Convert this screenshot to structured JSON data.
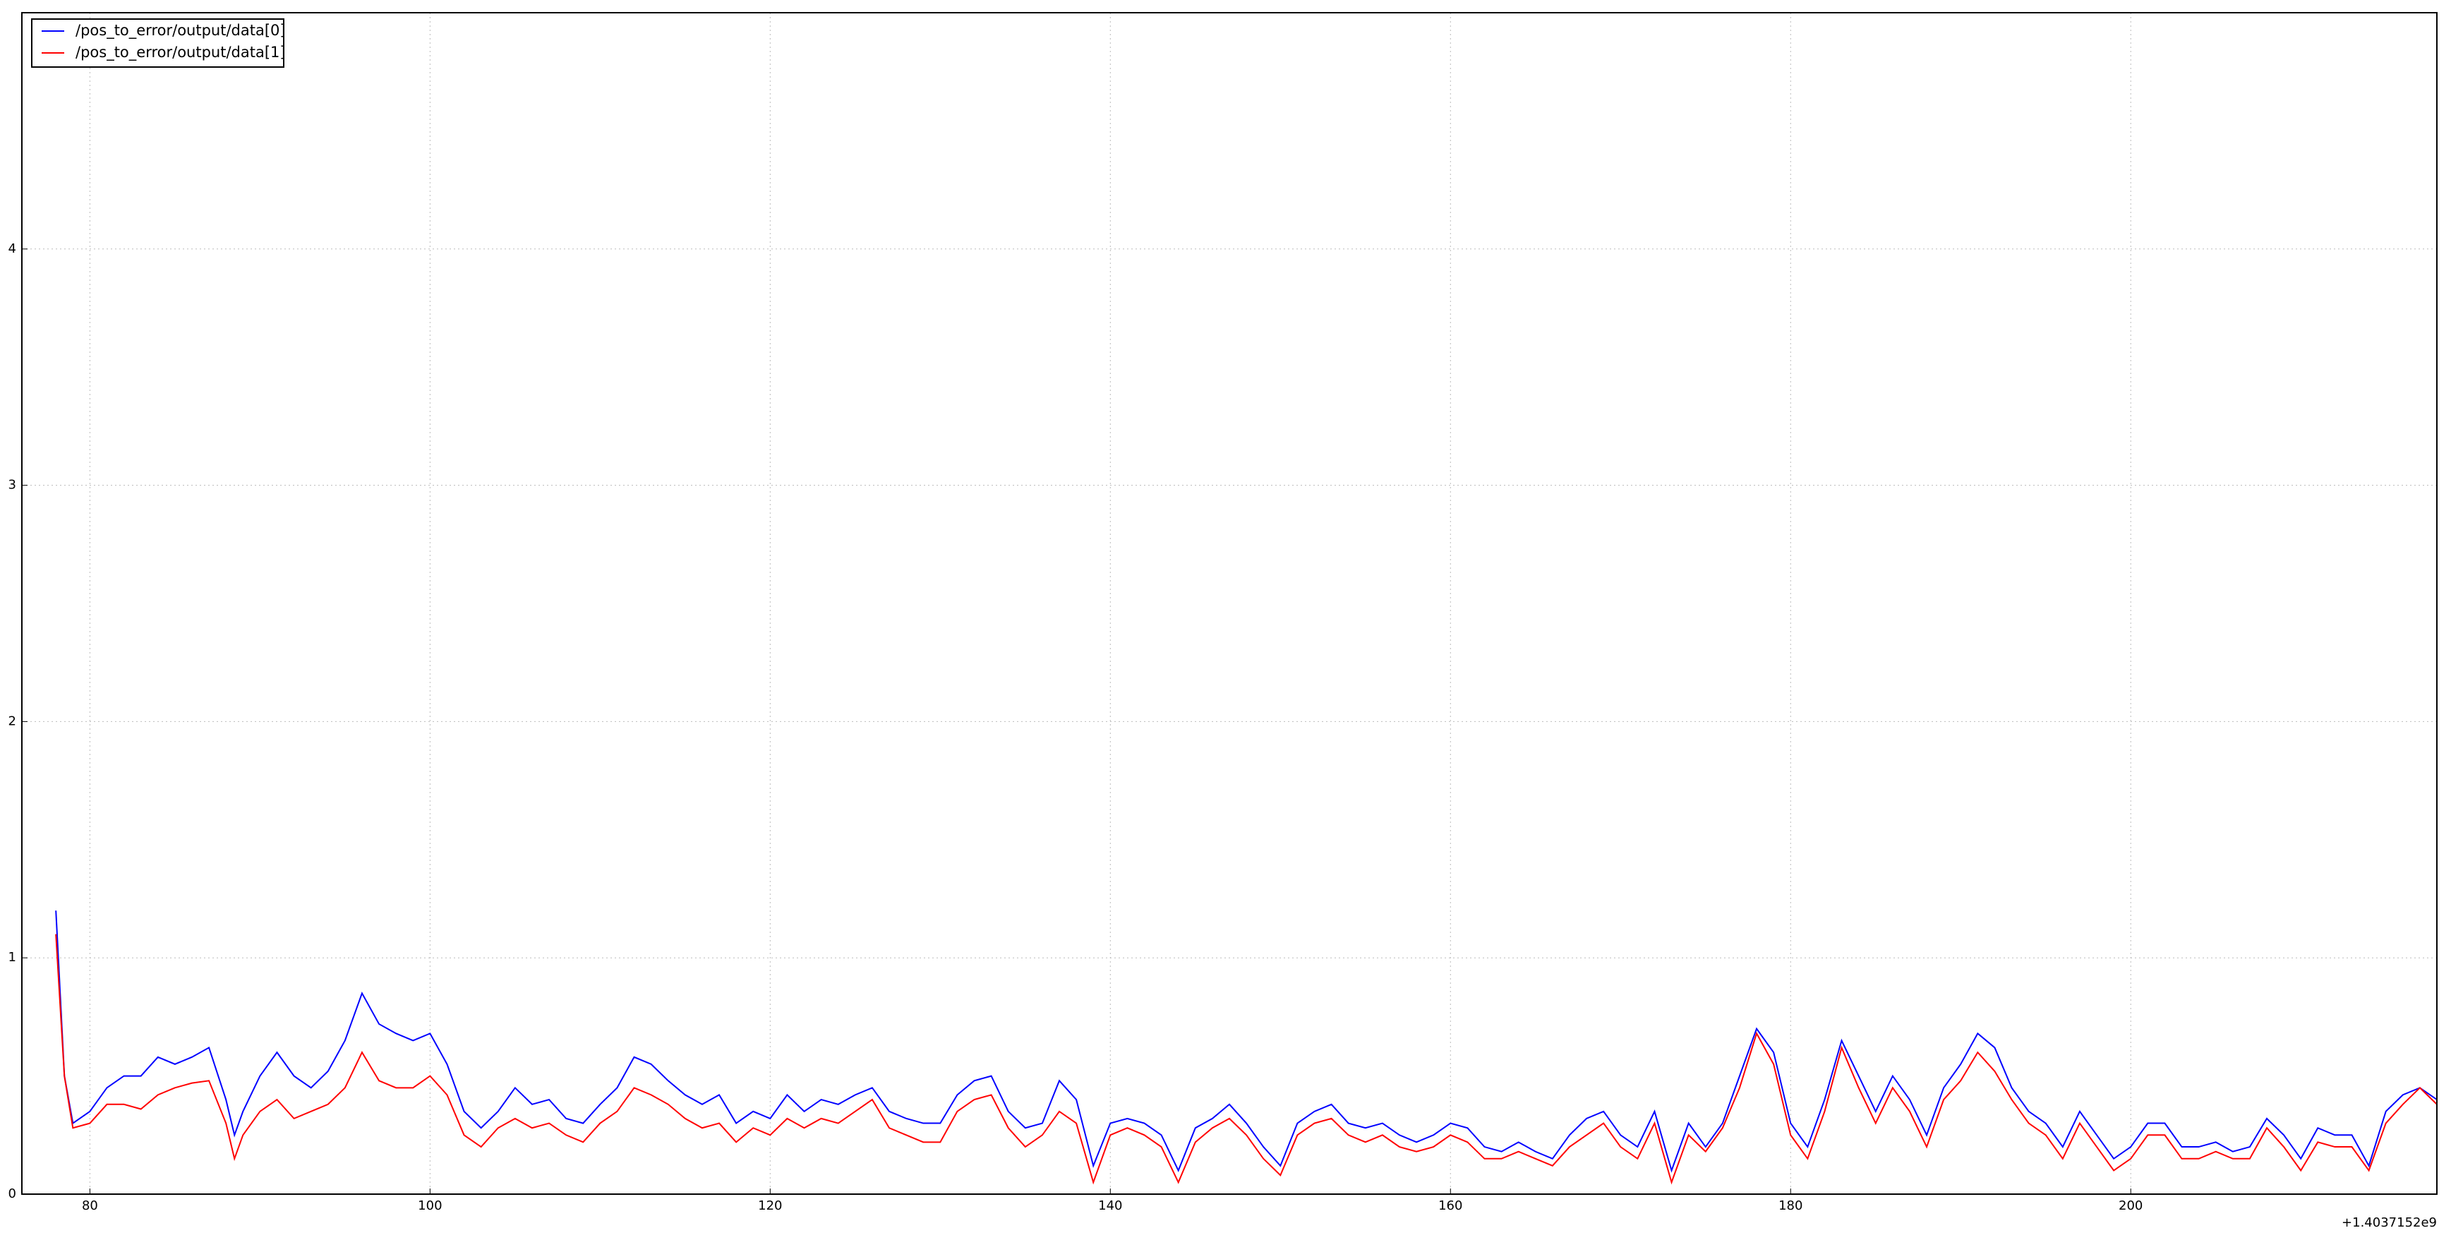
{
  "chart_data": {
    "type": "line",
    "x_offset_label": "+1.4037152e9",
    "x": [
      78,
      78.5,
      79,
      80,
      81,
      82,
      83,
      84,
      85,
      86,
      87,
      88,
      88.5,
      89,
      90,
      91,
      92,
      93,
      94,
      95,
      96,
      97,
      98,
      99,
      100,
      101,
      102,
      103,
      104,
      105,
      106,
      107,
      108,
      109,
      110,
      111,
      112,
      113,
      114,
      115,
      116,
      117,
      118,
      119,
      120,
      121,
      122,
      123,
      124,
      125,
      126,
      127,
      128,
      129,
      130,
      131,
      132,
      133,
      134,
      135,
      136,
      137,
      138,
      139,
      140,
      141,
      142,
      143,
      144,
      145,
      146,
      147,
      148,
      149,
      150,
      151,
      152,
      153,
      154,
      155,
      156,
      157,
      158,
      159,
      160,
      161,
      162,
      163,
      164,
      165,
      166,
      167,
      168,
      169,
      170,
      171,
      172,
      173,
      174,
      175,
      176,
      177,
      178,
      179,
      180,
      181,
      182,
      183,
      184,
      185,
      186,
      187,
      188,
      189,
      190,
      191,
      192,
      193,
      194,
      195,
      196,
      197,
      198,
      199,
      200,
      201,
      202,
      203,
      204,
      205,
      206,
      207,
      208,
      209,
      210,
      211,
      212,
      213,
      214,
      215,
      216,
      217,
      218
    ],
    "series": [
      {
        "name": "/pos_to_error/output/data[0]",
        "color": "#0000ff",
        "values": [
          1.2,
          0.5,
          0.3,
          0.35,
          0.45,
          0.5,
          0.5,
          0.58,
          0.55,
          0.58,
          0.62,
          0.4,
          0.25,
          0.35,
          0.5,
          0.6,
          0.5,
          0.45,
          0.52,
          0.65,
          0.85,
          0.72,
          0.68,
          0.65,
          0.68,
          0.55,
          0.35,
          0.28,
          0.35,
          0.45,
          0.38,
          0.4,
          0.32,
          0.3,
          0.38,
          0.45,
          0.58,
          0.55,
          0.48,
          0.42,
          0.38,
          0.42,
          0.3,
          0.35,
          0.32,
          0.42,
          0.35,
          0.4,
          0.38,
          0.42,
          0.45,
          0.35,
          0.32,
          0.3,
          0.3,
          0.42,
          0.48,
          0.5,
          0.35,
          0.28,
          0.3,
          0.48,
          0.4,
          0.12,
          0.3,
          0.32,
          0.3,
          0.25,
          0.1,
          0.28,
          0.32,
          0.38,
          0.3,
          0.2,
          0.12,
          0.3,
          0.35,
          0.38,
          0.3,
          0.28,
          0.3,
          0.25,
          0.22,
          0.25,
          0.3,
          0.28,
          0.2,
          0.18,
          0.22,
          0.18,
          0.15,
          0.25,
          0.32,
          0.35,
          0.25,
          0.2,
          0.35,
          0.1,
          0.3,
          0.2,
          0.3,
          0.5,
          0.7,
          0.6,
          0.3,
          0.2,
          0.4,
          0.65,
          0.5,
          0.35,
          0.5,
          0.4,
          0.25,
          0.45,
          0.55,
          0.68,
          0.62,
          0.45,
          0.35,
          0.3,
          0.2,
          0.35,
          0.25,
          0.15,
          0.2,
          0.3,
          0.3,
          0.2,
          0.2,
          0.22,
          0.18,
          0.2,
          0.32,
          0.25,
          0.15,
          0.28,
          0.25,
          0.25,
          0.12,
          0.35,
          0.42,
          0.45,
          0.4
        ]
      },
      {
        "name": "/pos_to_error/output/data[1]",
        "color": "#ff0000",
        "values": [
          1.1,
          0.5,
          0.28,
          0.3,
          0.38,
          0.38,
          0.36,
          0.42,
          0.45,
          0.47,
          0.48,
          0.3,
          0.15,
          0.25,
          0.35,
          0.4,
          0.32,
          0.35,
          0.38,
          0.45,
          0.6,
          0.48,
          0.45,
          0.45,
          0.5,
          0.42,
          0.25,
          0.2,
          0.28,
          0.32,
          0.28,
          0.3,
          0.25,
          0.22,
          0.3,
          0.35,
          0.45,
          0.42,
          0.38,
          0.32,
          0.28,
          0.3,
          0.22,
          0.28,
          0.25,
          0.32,
          0.28,
          0.32,
          0.3,
          0.35,
          0.4,
          0.28,
          0.25,
          0.22,
          0.22,
          0.35,
          0.4,
          0.42,
          0.28,
          0.2,
          0.25,
          0.35,
          0.3,
          0.05,
          0.25,
          0.28,
          0.25,
          0.2,
          0.05,
          0.22,
          0.28,
          0.32,
          0.25,
          0.15,
          0.08,
          0.25,
          0.3,
          0.32,
          0.25,
          0.22,
          0.25,
          0.2,
          0.18,
          0.2,
          0.25,
          0.22,
          0.15,
          0.15,
          0.18,
          0.15,
          0.12,
          0.2,
          0.25,
          0.3,
          0.2,
          0.15,
          0.3,
          0.05,
          0.25,
          0.18,
          0.28,
          0.45,
          0.68,
          0.55,
          0.25,
          0.15,
          0.35,
          0.62,
          0.45,
          0.3,
          0.45,
          0.35,
          0.2,
          0.4,
          0.48,
          0.6,
          0.52,
          0.4,
          0.3,
          0.25,
          0.15,
          0.3,
          0.2,
          0.1,
          0.15,
          0.25,
          0.25,
          0.15,
          0.15,
          0.18,
          0.15,
          0.15,
          0.28,
          0.2,
          0.1,
          0.22,
          0.2,
          0.2,
          0.1,
          0.3,
          0.38,
          0.45,
          0.38
        ]
      }
    ],
    "xlim": [
      76,
      218
    ],
    "xticks": [
      80,
      100,
      120,
      140,
      160,
      180,
      200
    ],
    "ylim": [
      0,
      5
    ],
    "yticks": [
      0,
      1,
      2,
      3,
      4
    ],
    "grid": true,
    "legend": "upper-left"
  }
}
